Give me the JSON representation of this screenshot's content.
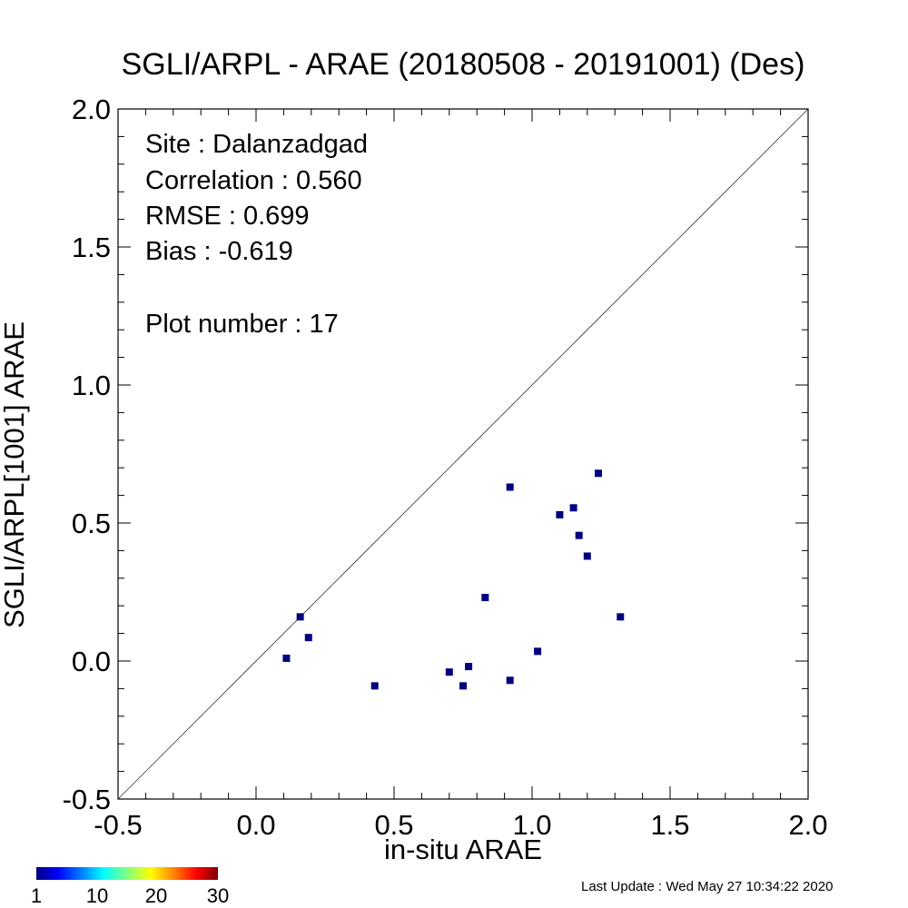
{
  "chart_data": {
    "type": "scatter",
    "title": "SGLI/ARPL - ARAE (20180508 - 20191001) (Des)",
    "xlabel": "in-situ ARAE",
    "ylabel": "SGLI/ARPL[1001]    ARAE",
    "xlim": [
      -0.5,
      2.0
    ],
    "ylim": [
      -0.5,
      2.0
    ],
    "xticks": [
      "-0.5",
      "0.0",
      "0.5",
      "1.0",
      "1.5",
      "2.0"
    ],
    "yticks": [
      "-0.5",
      "0.0",
      "0.5",
      "1.0",
      "1.5",
      "2.0"
    ],
    "reference_line": "1:1",
    "marker_color": "#00007f",
    "points": [
      {
        "x": 0.11,
        "y": 0.01
      },
      {
        "x": 0.16,
        "y": 0.16
      },
      {
        "x": 0.19,
        "y": 0.085
      },
      {
        "x": 0.43,
        "y": -0.09
      },
      {
        "x": 0.7,
        "y": -0.04
      },
      {
        "x": 0.75,
        "y": -0.09
      },
      {
        "x": 0.77,
        "y": -0.02
      },
      {
        "x": 0.83,
        "y": 0.23
      },
      {
        "x": 0.92,
        "y": 0.63
      },
      {
        "x": 0.92,
        "y": -0.07
      },
      {
        "x": 1.02,
        "y": 0.035
      },
      {
        "x": 1.1,
        "y": 0.53
      },
      {
        "x": 1.15,
        "y": 0.555
      },
      {
        "x": 1.17,
        "y": 0.455
      },
      {
        "x": 1.2,
        "y": 0.38
      },
      {
        "x": 1.24,
        "y": 0.68
      },
      {
        "x": 1.32,
        "y": 0.16
      }
    ],
    "stats": {
      "site": "Site : Dalanzadgad",
      "correlation": "Correlation :    0.560",
      "rmse": "RMSE :    0.699",
      "bias": "Bias :   -0.619",
      "plot_number": "Plot number :        17"
    },
    "colorbar": {
      "ticks": [
        "1",
        "10",
        "20",
        "30"
      ]
    }
  },
  "footer": {
    "last_update": "Last Update : Wed May 27 10:34:22 2020"
  }
}
